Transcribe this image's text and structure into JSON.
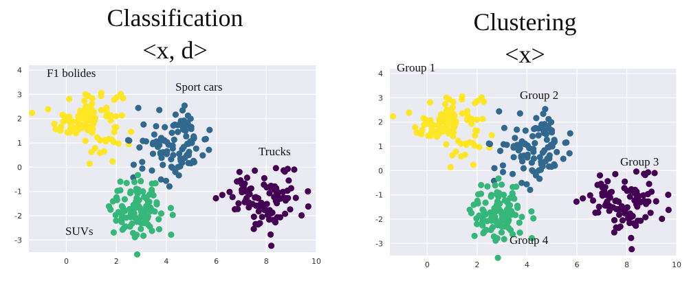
{
  "colors": {
    "yellow": "#fde725",
    "blue": "#31688e",
    "green": "#35b779",
    "purple": "#440154",
    "plot_bg": "#eaeaf2",
    "grid": "#ffffff"
  },
  "charts": [
    {
      "title_lines": [
        "Classification",
        "<x, d>"
      ],
      "annotations": [
        "F1 bolides",
        "Sport cars",
        "Trucks",
        "SUVs"
      ]
    },
    {
      "title_lines": [
        "Clustering",
        "<x>"
      ],
      "annotations": [
        "Group 1",
        "Group 2",
        "Group 3",
        "Group 4"
      ]
    }
  ],
  "chart_data": [
    {
      "type": "scatter",
      "title": "Classification <x, d>",
      "xlim": [
        -1.5,
        10
      ],
      "ylim": [
        -3.5,
        4.2
      ],
      "xticks": [
        0,
        2,
        4,
        6,
        8,
        10
      ],
      "yticks": [
        -3,
        -2,
        -1,
        0,
        1,
        2,
        3,
        4
      ],
      "grid": true,
      "clusters": [
        {
          "label": "F1 bolides",
          "color": "yellow",
          "center": [
            0.9,
            2.0
          ],
          "spread": [
            0.65,
            0.65
          ],
          "n": 100
        },
        {
          "label": "Sport cars",
          "color": "blue",
          "center": [
            4.3,
            0.9
          ],
          "spread": [
            0.75,
            0.7
          ],
          "n": 100
        },
        {
          "label": "Trucks",
          "color": "purple",
          "center": [
            8.0,
            -1.3
          ],
          "spread": [
            0.75,
            0.6
          ],
          "n": 100
        },
        {
          "label": "SUVs",
          "color": "green",
          "center": [
            2.9,
            -1.8
          ],
          "spread": [
            0.55,
            0.7
          ],
          "n": 100
        }
      ]
    },
    {
      "type": "scatter",
      "title": "Clustering <x>",
      "xlim": [
        -1.5,
        10
      ],
      "ylim": [
        -3.5,
        4.2
      ],
      "xticks": [
        0,
        2,
        4,
        6,
        8,
        10
      ],
      "yticks": [
        -3,
        -2,
        -1,
        0,
        1,
        2,
        3,
        4
      ],
      "grid": true,
      "clusters": [
        {
          "label": "Group 1",
          "color": "yellow",
          "center": [
            0.9,
            2.0
          ],
          "spread": [
            0.65,
            0.65
          ],
          "n": 100
        },
        {
          "label": "Group 2",
          "color": "blue",
          "center": [
            4.3,
            0.9
          ],
          "spread": [
            0.75,
            0.7
          ],
          "n": 100
        },
        {
          "label": "Group 3",
          "color": "purple",
          "center": [
            8.0,
            -1.3
          ],
          "spread": [
            0.75,
            0.6
          ],
          "n": 100
        },
        {
          "label": "Group 4",
          "color": "green",
          "center": [
            2.9,
            -1.8
          ],
          "spread": [
            0.55,
            0.7
          ],
          "n": 100
        }
      ]
    }
  ]
}
